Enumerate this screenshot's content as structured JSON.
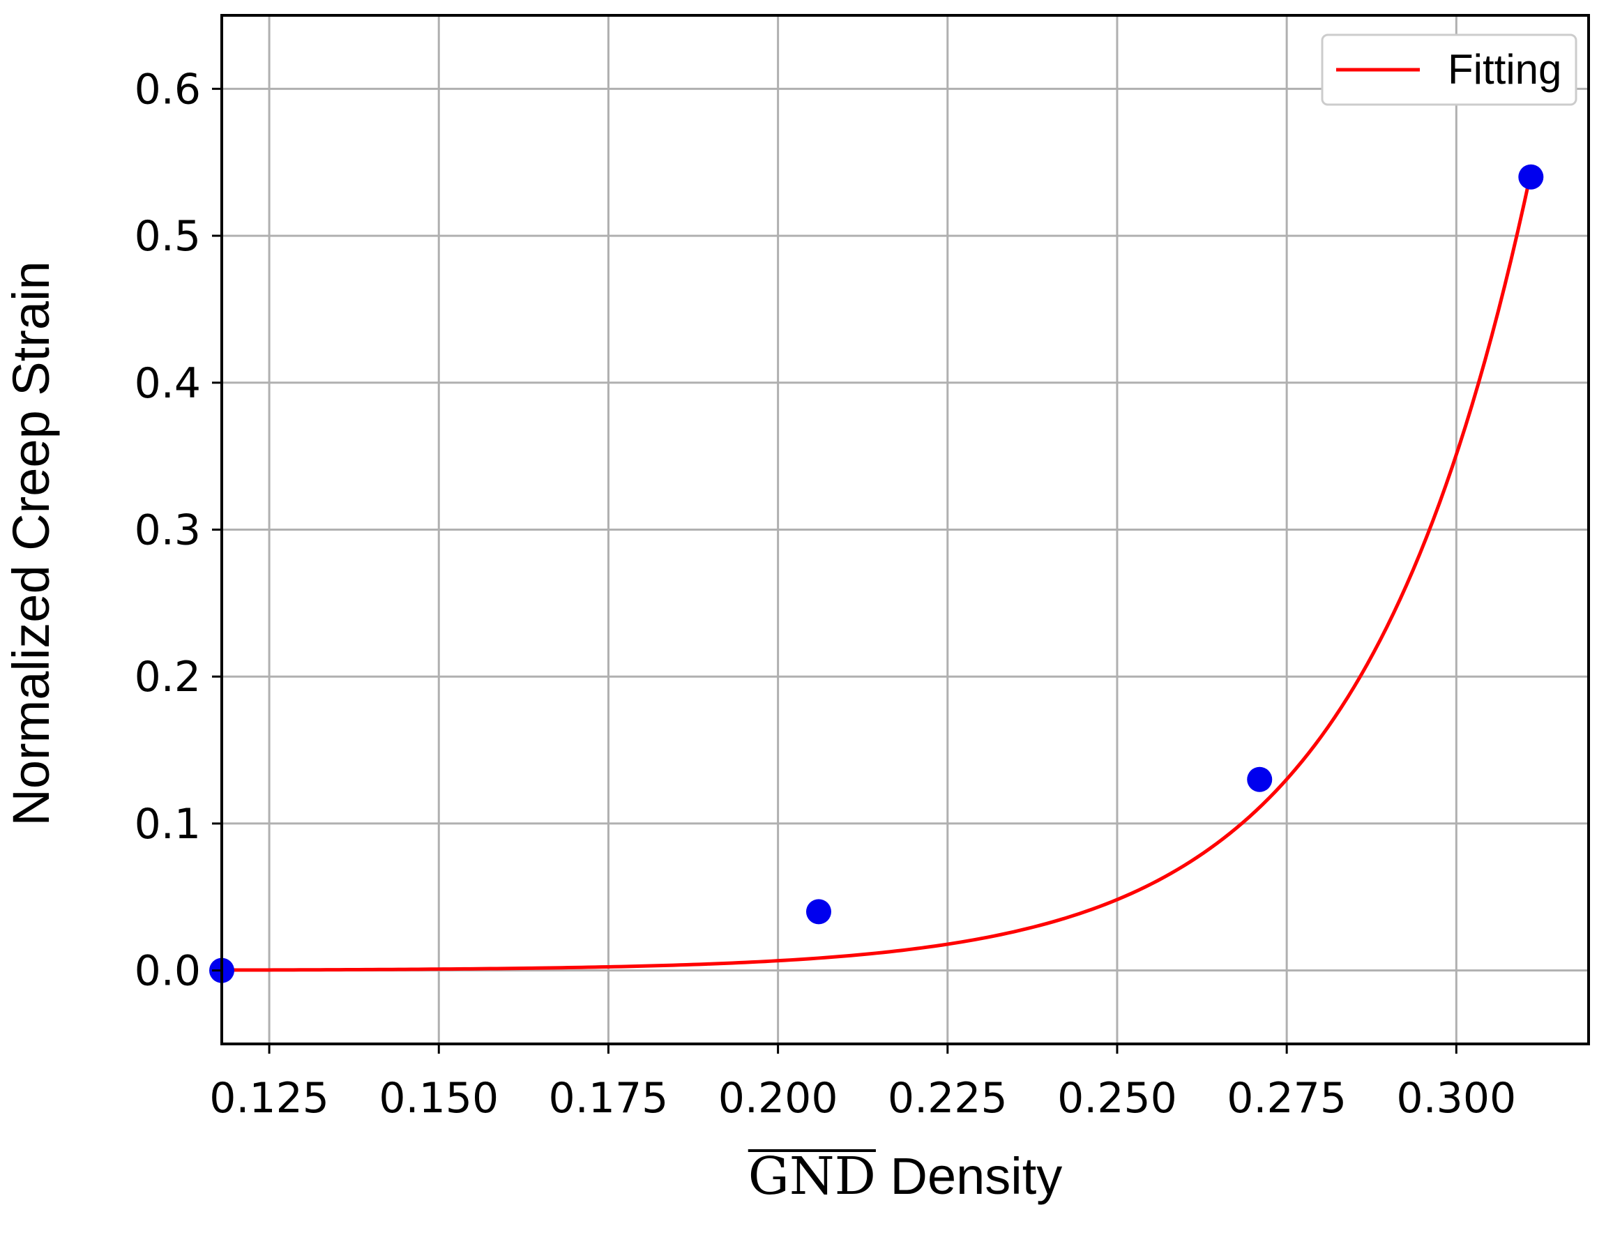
{
  "chart_data": {
    "type": "scatter",
    "title": "",
    "xlabel_overlined": "GND",
    "xlabel_rest": "Density",
    "ylabel": "Normalized Creep Strain",
    "xlim": [
      0.118,
      0.3195
    ],
    "ylim": [
      -0.05,
      0.65
    ],
    "xticks": [
      0.125,
      0.15,
      0.175,
      0.2,
      0.225,
      0.25,
      0.275,
      0.3
    ],
    "xtick_labels": [
      "0.125",
      "0.150",
      "0.175",
      "0.200",
      "0.225",
      "0.250",
      "0.275",
      "0.300"
    ],
    "yticks": [
      0.0,
      0.1,
      0.2,
      0.3,
      0.4,
      0.5,
      0.6
    ],
    "ytick_labels": [
      "0.0",
      "0.1",
      "0.2",
      "0.3",
      "0.4",
      "0.5",
      "0.6"
    ],
    "grid": true,
    "legend_position": "top-right",
    "points": {
      "color": "#0000ee",
      "x": [
        0.118,
        0.206,
        0.271,
        0.311
      ],
      "y": [
        0.0,
        0.04,
        0.13,
        0.54
      ]
    },
    "fit": {
      "name": "Fitting",
      "color": "#ff0000",
      "form": "a*exp(b*x)",
      "a": 2.36e-06,
      "b": 39.7,
      "x_range": [
        0.118,
        0.311
      ]
    }
  }
}
